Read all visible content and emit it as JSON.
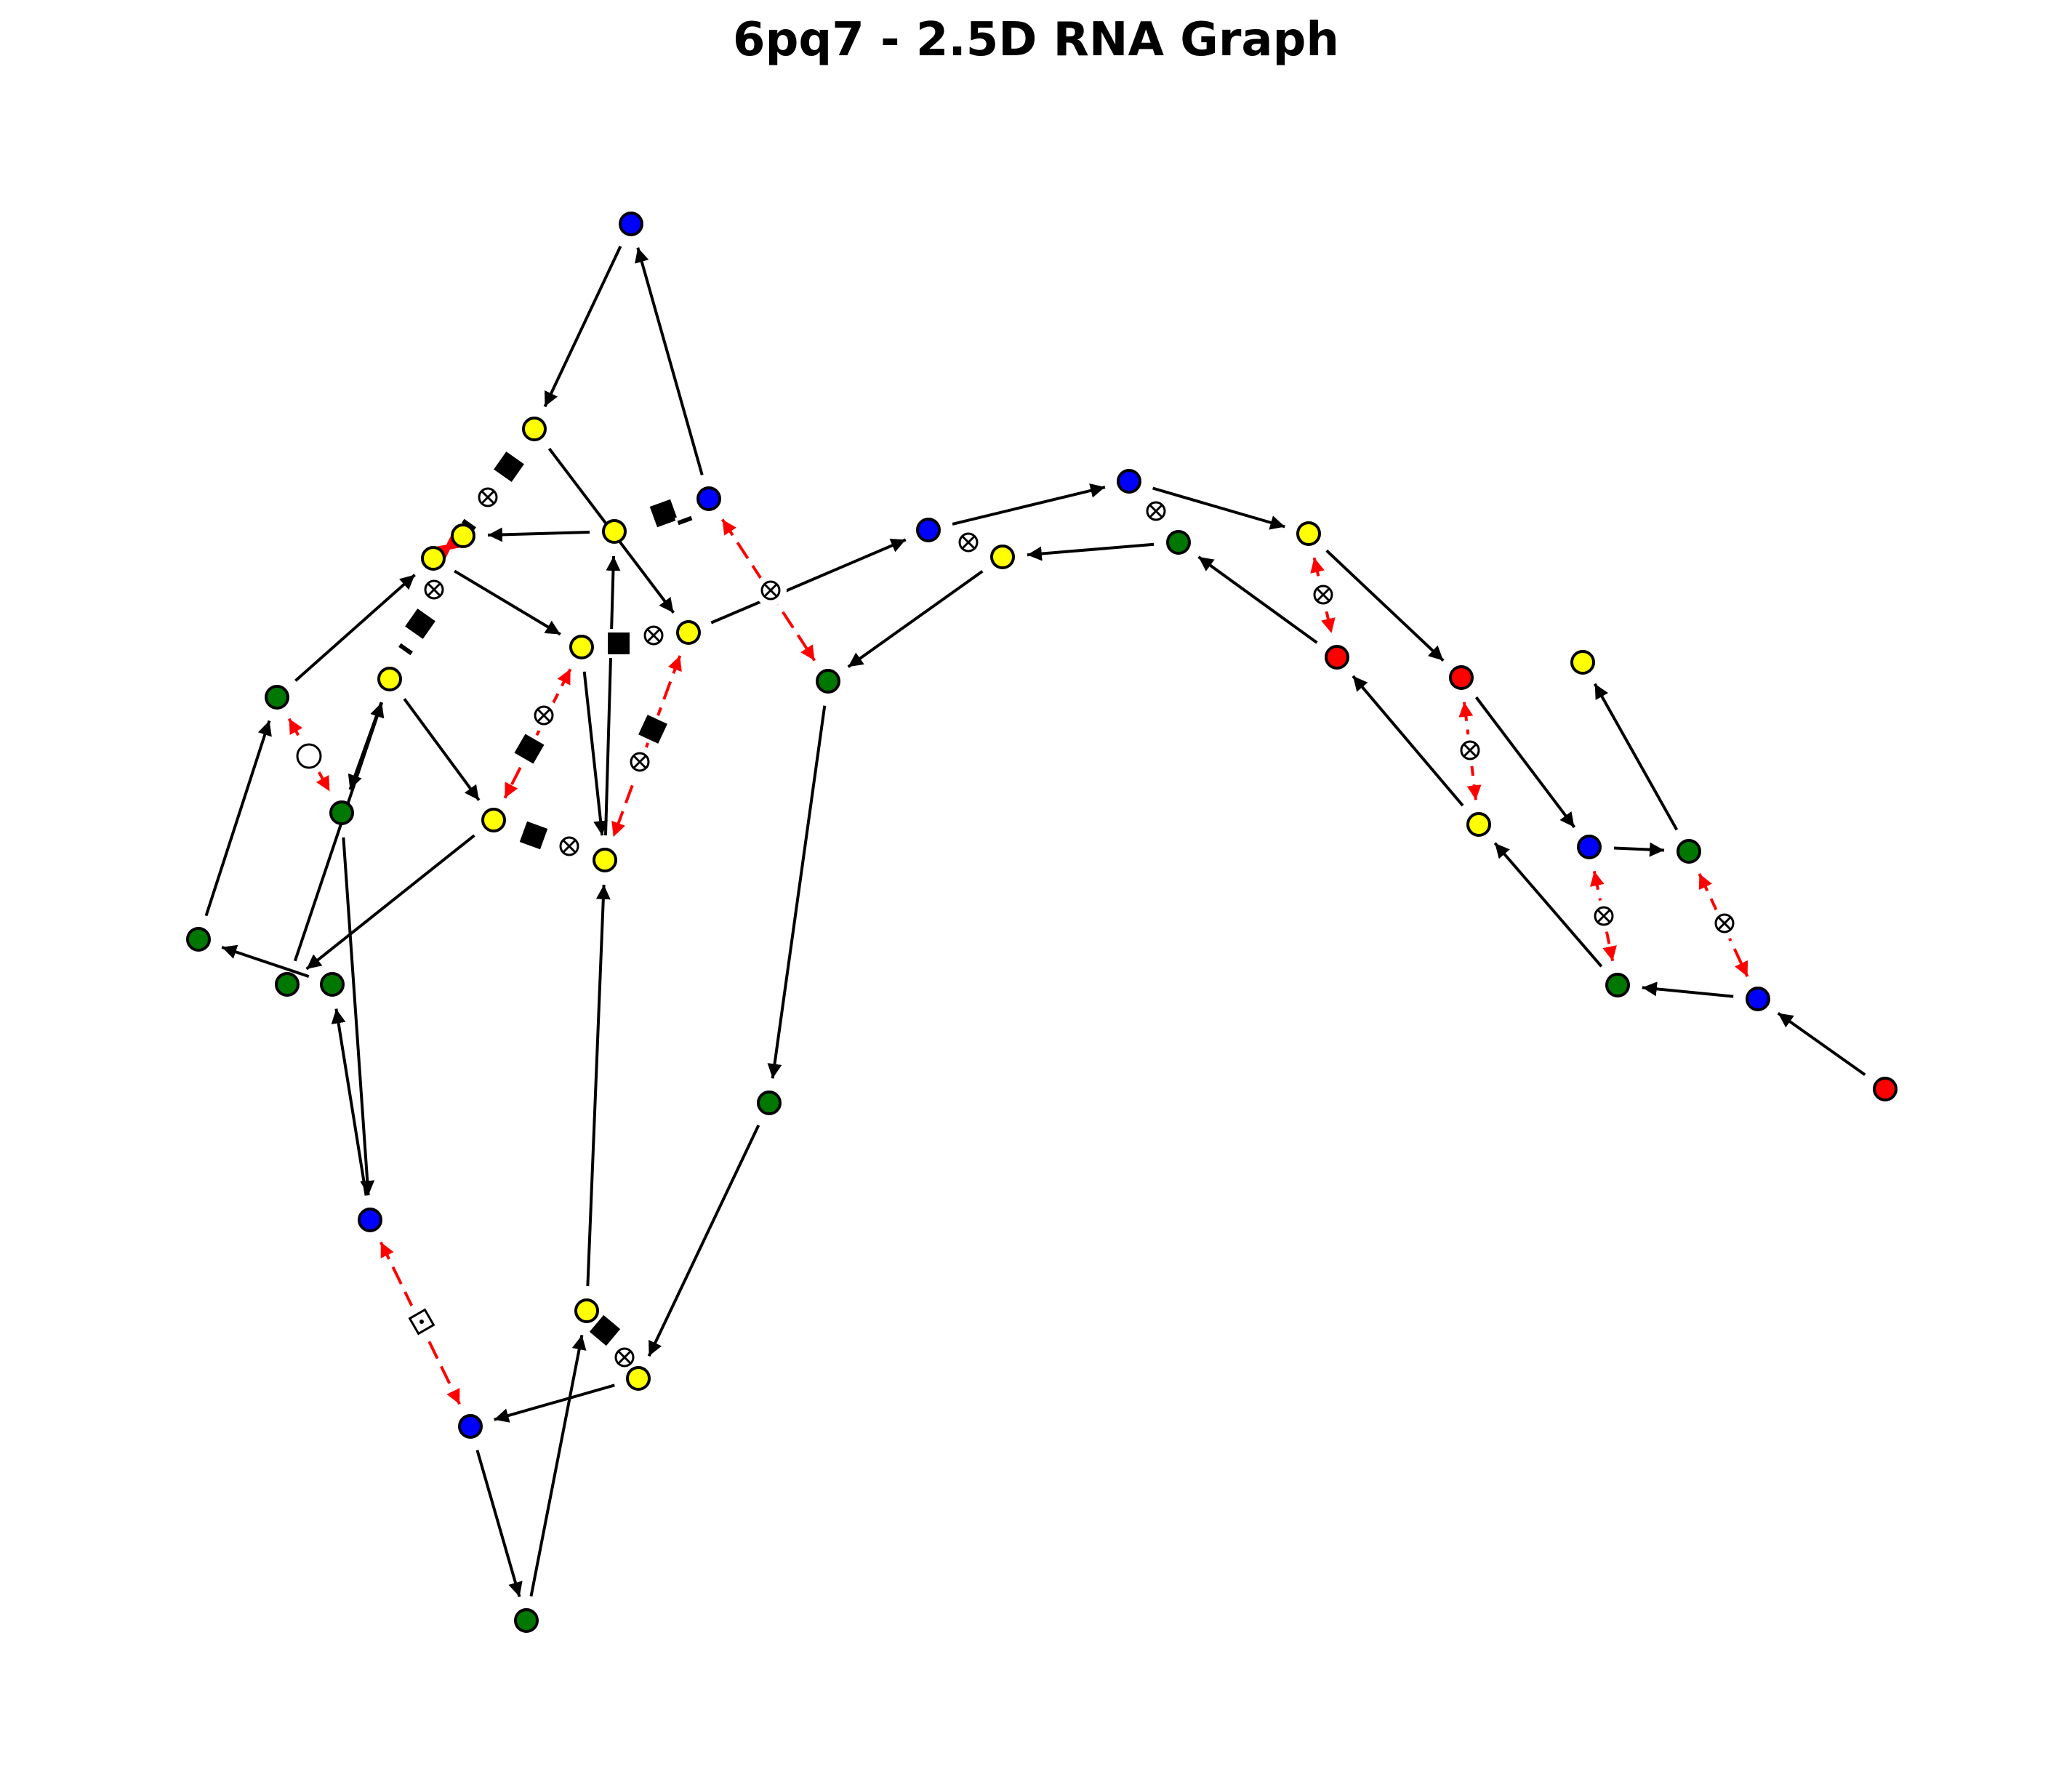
{
  "title": "6pq7 - 2.5D RNA Graph",
  "colors": {
    "A": "#ff0000",
    "C": "#00aa00",
    "G": "#0000ff",
    "U": "#ffff00",
    "green": "#007700",
    "backbone": "#000000",
    "pair": "#ff0000"
  },
  "nodes": [
    {
      "id": "n1",
      "color": "#0000ff"
    },
    {
      "id": "n2",
      "color": "#ffff00"
    },
    {
      "id": "n3",
      "color": "#0000ff"
    },
    {
      "id": "n4",
      "color": "#ffff00"
    },
    {
      "id": "n5",
      "color": "#ffff00"
    },
    {
      "id": "n6",
      "color": "#ffff00"
    },
    {
      "id": "n7",
      "color": "#ffff00"
    },
    {
      "id": "n8",
      "color": "#ffff00"
    },
    {
      "id": "n9",
      "color": "#007700"
    },
    {
      "id": "n10",
      "color": "#ffff00"
    },
    {
      "id": "n11",
      "color": "#007700"
    },
    {
      "id": "n12",
      "color": "#ffff00"
    },
    {
      "id": "n13",
      "color": "#ffff00"
    },
    {
      "id": "n14",
      "color": "#007700"
    },
    {
      "id": "n15",
      "color": "#007700"
    },
    {
      "id": "n16",
      "color": "#007700"
    },
    {
      "id": "n17",
      "color": "#007700"
    },
    {
      "id": "n18",
      "color": "#0000ff"
    },
    {
      "id": "n19",
      "color": "#0000ff"
    },
    {
      "id": "n20",
      "color": "#007700"
    },
    {
      "id": "n21",
      "color": "#ffff00"
    },
    {
      "id": "n22",
      "color": "#ffff00"
    },
    {
      "id": "n23",
      "color": "#007700"
    },
    {
      "id": "n24",
      "color": "#0000ff"
    },
    {
      "id": "n25",
      "color": "#ffff00"
    },
    {
      "id": "n26",
      "color": "#0000ff"
    },
    {
      "id": "n27",
      "color": "#007700"
    },
    {
      "id": "n28",
      "color": "#ffff00"
    },
    {
      "id": "n29",
      "color": "#ff0000"
    },
    {
      "id": "n30",
      "color": "#ff0000"
    },
    {
      "id": "n31",
      "color": "#ffff00"
    },
    {
      "id": "n32",
      "color": "#0000ff"
    },
    {
      "id": "n33",
      "color": "#007700"
    },
    {
      "id": "n34",
      "color": "#ffff00"
    },
    {
      "id": "n35",
      "color": "#007700"
    },
    {
      "id": "n36",
      "color": "#0000ff"
    },
    {
      "id": "n37",
      "color": "#ff0000"
    }
  ]
}
